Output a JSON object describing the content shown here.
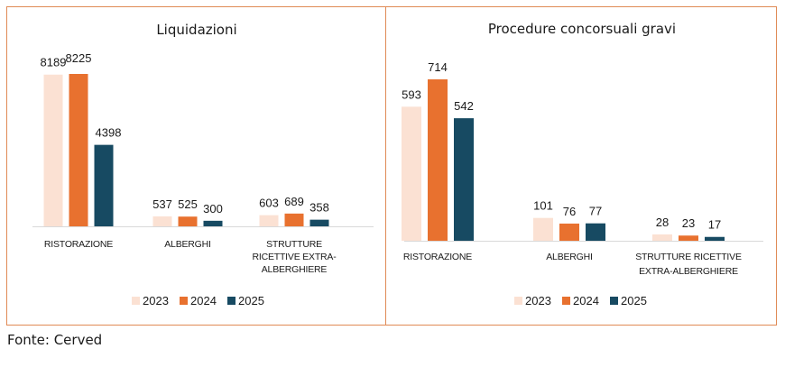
{
  "chart_data": [
    {
      "type": "bar",
      "title": "Liquidazioni",
      "categories": [
        "RISTORAZIONE",
        "ALBERGHI",
        "STRUTTURE RICETTIVE EXTRA-ALBERGHIERE"
      ],
      "category_lines": [
        [
          "RISTORAZIONE"
        ],
        [
          "ALBERGHI"
        ],
        [
          "STRUTTURE",
          "RICETTIVE EXTRA-",
          "ALBERGHIERE"
        ]
      ],
      "series": [
        {
          "name": "2023",
          "color": "#fbe1d3",
          "values": [
            8189,
            537,
            603
          ]
        },
        {
          "name": "2024",
          "color": "#e8712f",
          "values": [
            8225,
            525,
            689
          ]
        },
        {
          "name": "2025",
          "color": "#174a62",
          "values": [
            4398,
            300,
            358
          ]
        }
      ],
      "xlabel": "",
      "ylabel": "",
      "ylim": [
        0,
        8225
      ],
      "grid": false,
      "legend": "bottom"
    },
    {
      "type": "bar",
      "title": "Procedure concorsuali gravi",
      "categories": [
        "RISTORAZIONE",
        "ALBERGHI",
        "STRUTTURE RICETTIVE EXTRA-ALBERGHIERE"
      ],
      "category_lines": [
        [
          "RISTORAZIONE"
        ],
        [
          "ALBERGHI"
        ],
        [
          "STRUTTURE RICETTIVE",
          "EXTRA-ALBERGHIERE"
        ]
      ],
      "series": [
        {
          "name": "2023",
          "color": "#fbe1d3",
          "values": [
            593,
            101,
            28
          ]
        },
        {
          "name": "2024",
          "color": "#e8712f",
          "values": [
            714,
            76,
            23
          ]
        },
        {
          "name": "2025",
          "color": "#174a62",
          "values": [
            542,
            77,
            17
          ]
        }
      ],
      "xlabel": "",
      "ylabel": "",
      "ylim": [
        0,
        714
      ],
      "grid": false,
      "legend": "bottom"
    }
  ],
  "source": "Fonte: Cerved",
  "colors": {
    "border": "#e08a55",
    "axis": "#d9d9d9"
  }
}
